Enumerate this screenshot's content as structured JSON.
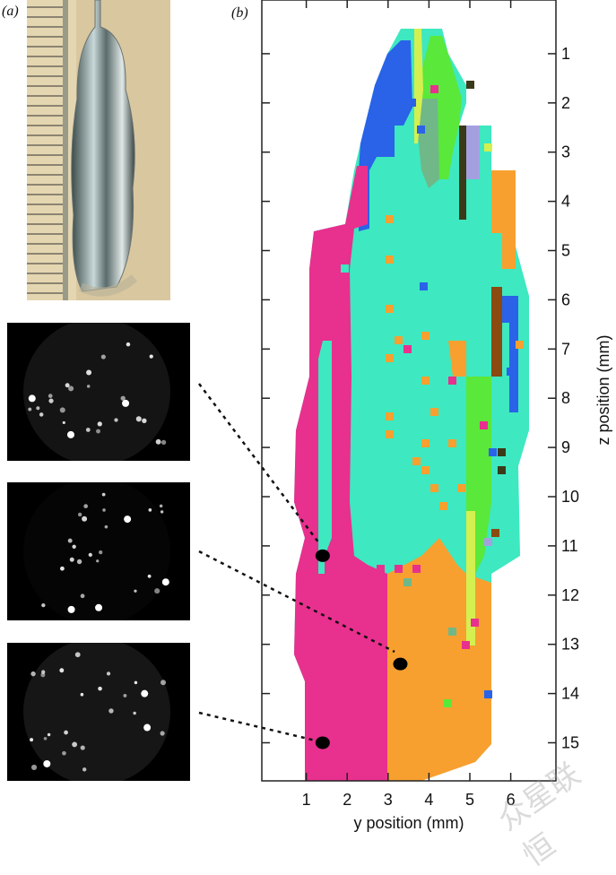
{
  "panels": {
    "a_label": "(a)",
    "b_label": "(b)"
  },
  "chart_data": {
    "type": "heatmap",
    "description_of_content": "",
    "xlabel": "y position (mm)",
    "ylabel": "z position (mm)",
    "x_ticks": [
      "1",
      "2",
      "3",
      "4",
      "5",
      "6"
    ],
    "y_ticks": [
      "1",
      "2",
      "3",
      "4",
      "5",
      "6",
      "7",
      "8",
      "9",
      "10",
      "11",
      "12",
      "13",
      "14",
      "15"
    ],
    "y_axis_side": "right",
    "y_inverted": true,
    "colors": {
      "pink": "#e8308e",
      "cyan": "#3ee8c0",
      "blue": "#2a62e8",
      "orange": "#f7a030",
      "green": "#5ae83a",
      "yellowgreen": "#d4f050",
      "greygreen": "#70b888",
      "dark": "#3a3a18",
      "lavender": "#a4a0e0",
      "brown": "#8a4a10"
    },
    "markers": [
      {
        "y_mm": 1.4,
        "z_mm": 11.2
      },
      {
        "y_mm": 3.3,
        "z_mm": 13.4
      },
      {
        "y_mm": 1.4,
        "z_mm": 15.0
      }
    ]
  },
  "watermark": "众星联恒"
}
